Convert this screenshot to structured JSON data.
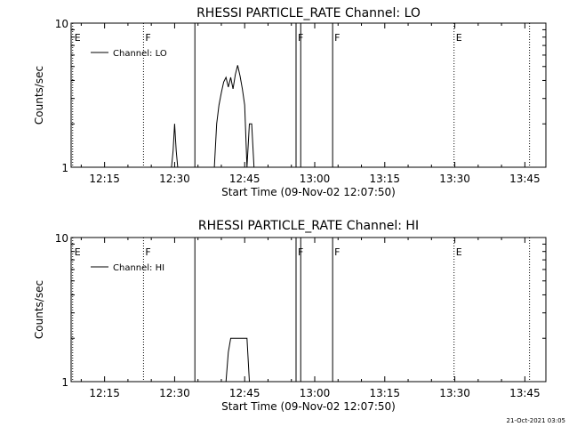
{
  "chart_data": [
    {
      "type": "line",
      "title": "RHESSI PARTICLE_RATE Channel: LO",
      "xlabel": "Start Time (09-Nov-02 12:07:50)",
      "ylabel": "Counts/sec",
      "yscale": "log",
      "ylim": [
        1,
        10
      ],
      "y_ticks": [
        {
          "v": 1,
          "label": "1"
        },
        {
          "v": 10,
          "label": "10"
        }
      ],
      "xlim": [
        "12:07:50",
        "13:49:30"
      ],
      "x_ticks": [
        "12:15",
        "12:30",
        "12:45",
        "13:00",
        "13:15",
        "13:30",
        "13:45"
      ],
      "legend": {
        "label": "Channel: LO",
        "placement": "top-left"
      },
      "series": [
        {
          "x": [
            "12:38:30",
            "12:39:00",
            "12:39:30",
            "12:40:00",
            "12:40:30",
            "12:41:00",
            "12:41:30",
            "12:42:00",
            "12:42:30",
            "12:43:00",
            "12:43:30",
            "12:44:00",
            "12:44:30",
            "12:45:00",
            "12:45:30",
            "12:46:00",
            "12:46:30",
            "12:47:00",
            "12:47:30"
          ],
          "y": [
            1,
            2.0,
            2.7,
            3.3,
            3.9,
            4.2,
            3.6,
            4.2,
            3.5,
            4.4,
            5.1,
            4.3,
            3.5,
            2.7,
            1,
            2.0,
            2.0,
            1,
            1
          ]
        },
        {
          "x": [
            "12:29:20",
            "12:29:40",
            "12:30:00",
            "12:30:20",
            "12:30:40"
          ],
          "y": [
            1,
            1.3,
            2.0,
            1.3,
            1
          ]
        }
      ],
      "markers": [
        {
          "time": "12:08:10",
          "label": "E",
          "style": "dotted"
        },
        {
          "time": "12:23:20",
          "label": "F",
          "style": "dotted"
        },
        {
          "time": "12:34:20",
          "label": "",
          "style": "solid"
        },
        {
          "time": "12:56:00",
          "label": "F",
          "style": "solid"
        },
        {
          "time": "12:57:00",
          "label": "",
          "style": "solid"
        },
        {
          "time": "13:03:50",
          "label": "F",
          "style": "solid"
        },
        {
          "time": "13:29:50",
          "label": "E",
          "style": "dotted"
        },
        {
          "time": "13:46:00",
          "label": "",
          "style": "dotted"
        }
      ]
    },
    {
      "type": "line",
      "title": "RHESSI PARTICLE_RATE Channel: HI",
      "xlabel": "Start Time (09-Nov-02 12:07:50)",
      "ylabel": "Counts/sec",
      "yscale": "log",
      "ylim": [
        1,
        10
      ],
      "y_ticks": [
        {
          "v": 1,
          "label": "1"
        },
        {
          "v": 10,
          "label": "10"
        }
      ],
      "xlim": [
        "12:07:50",
        "13:49:30"
      ],
      "x_ticks": [
        "12:15",
        "12:30",
        "12:45",
        "13:00",
        "13:15",
        "13:30",
        "13:45"
      ],
      "legend": {
        "label": "Channel: HI",
        "placement": "top-left"
      },
      "series": [
        {
          "x": [
            "12:41:00",
            "12:41:30",
            "12:42:00",
            "12:45:30",
            "12:46:00"
          ],
          "y": [
            1,
            1.6,
            2.0,
            2.0,
            1
          ]
        }
      ],
      "markers": [
        {
          "time": "12:08:10",
          "label": "E",
          "style": "dotted"
        },
        {
          "time": "12:23:20",
          "label": "F",
          "style": "dotted"
        },
        {
          "time": "12:34:20",
          "label": "",
          "style": "solid"
        },
        {
          "time": "12:56:00",
          "label": "F",
          "style": "solid"
        },
        {
          "time": "12:57:00",
          "label": "",
          "style": "solid"
        },
        {
          "time": "13:03:50",
          "label": "F",
          "style": "solid"
        },
        {
          "time": "13:29:50",
          "label": "E",
          "style": "dotted"
        },
        {
          "time": "13:46:00",
          "label": "",
          "style": "dotted"
        }
      ]
    }
  ],
  "footer": {
    "timestamp": "21-Oct-2021 03:05"
  }
}
